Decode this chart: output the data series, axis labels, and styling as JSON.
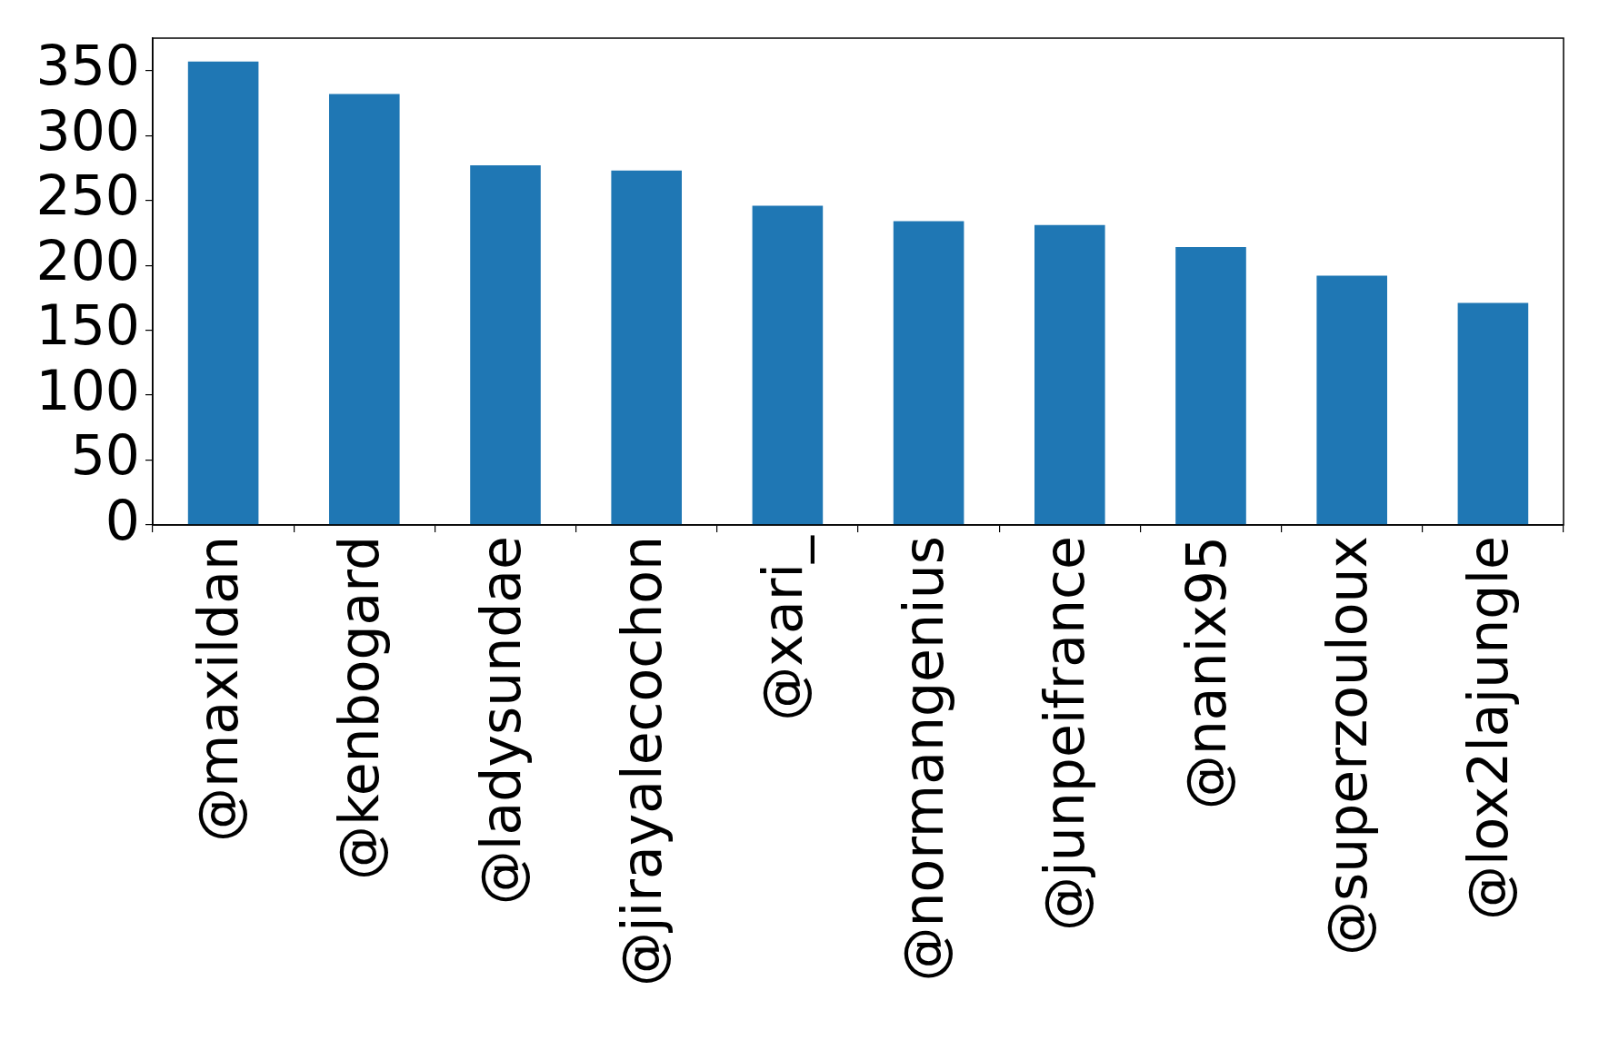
{
  "chart_data": {
    "type": "bar",
    "categories": [
      "@maxildan",
      "@kenbogard",
      "@ladysundae",
      "@jirayalecochon",
      "@xari_",
      "@normangenius",
      "@junpeifrance",
      "@nanix95",
      "@superzouloux",
      "@lox2lajungle"
    ],
    "values": [
      357,
      332,
      277,
      273,
      246,
      234,
      231,
      214,
      192,
      171
    ],
    "color": "#1f77b4",
    "ylim": [
      0,
      375
    ],
    "yticks": [
      0,
      50,
      100,
      150,
      200,
      250,
      300,
      350
    ],
    "grid": false,
    "legend": false
  }
}
